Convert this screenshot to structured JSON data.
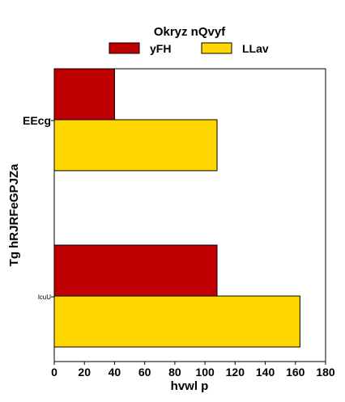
{
  "chart_data": {
    "type": "bar",
    "orientation": "horizontal",
    "legend_title": "Okryz nQvyf",
    "legend_position": "top-center",
    "categories": [
      "EEcg",
      "lcuU"
    ],
    "series": [
      {
        "name": "yFH",
        "color": "#c00000",
        "values": [
          40,
          108
        ]
      },
      {
        "name": "LLav",
        "color": "#ffd700",
        "values": [
          108,
          163
        ]
      }
    ],
    "xlabel": "hvwl p",
    "ylabel": "Tg hRJRFeGPJZa",
    "xlim": [
      0,
      180
    ],
    "xticks": [
      0,
      20,
      40,
      60,
      80,
      100,
      120,
      140,
      160,
      180
    ],
    "grid": false
  }
}
